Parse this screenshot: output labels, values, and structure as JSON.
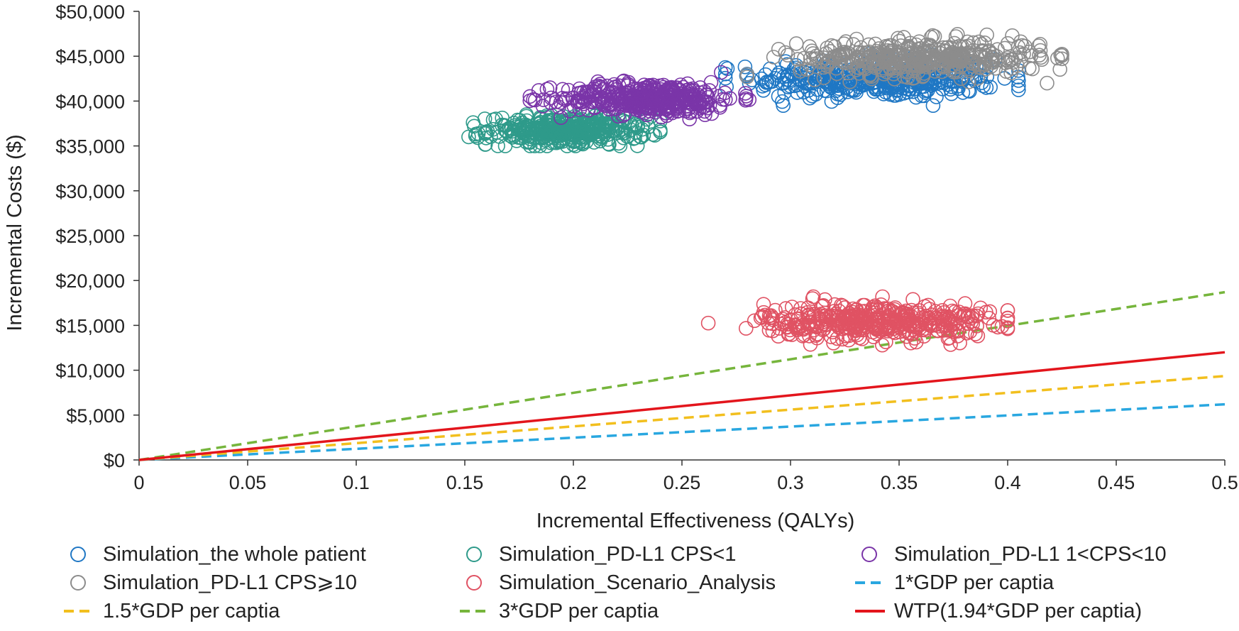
{
  "chart_data": {
    "type": "scatter",
    "title": "",
    "xlabel": "Incremental Effectiveness (QALYs)",
    "ylabel": "Incremental Costs ($)",
    "xlim": [
      0,
      0.5
    ],
    "ylim": [
      0,
      50000
    ],
    "x_ticks": [
      0,
      0.05,
      0.1,
      0.15,
      0.2,
      0.25,
      0.3,
      0.35,
      0.4,
      0.45,
      0.5
    ],
    "x_tick_labels": [
      "0",
      "0.05",
      "0.1",
      "0.15",
      "0.2",
      "0.25",
      "0.3",
      "0.35",
      "0.4",
      "0.45",
      "0.5"
    ],
    "y_ticks": [
      0,
      5000,
      10000,
      15000,
      20000,
      25000,
      30000,
      35000,
      40000,
      45000,
      50000
    ],
    "y_tick_labels": [
      "$0",
      "$5,000",
      "$10,000",
      "$15,000",
      "$20,000",
      "$25,000",
      "$30,000",
      "$35,000",
      "$40,000",
      "$45,000",
      "$50,000"
    ],
    "grid": false,
    "legend_position": "bottom",
    "scatter_series": [
      {
        "name": "Simulation_the whole patient",
        "color": "#1f77c4",
        "center": [
          0.34,
          42500
        ],
        "spread": [
          0.028,
          1100
        ],
        "count": 420,
        "range_x": [
          0.27,
          0.405
        ],
        "range_y": [
          39500,
          45500
        ]
      },
      {
        "name": "Simulation_PD-L1 CPS<1",
        "color": "#2e9a8a",
        "center": [
          0.197,
          36700
        ],
        "spread": [
          0.018,
          800
        ],
        "count": 380,
        "range_x": [
          0.145,
          0.24
        ],
        "range_y": [
          35000,
          38500
        ]
      },
      {
        "name": "Simulation_PD-L1 1<CPS<10",
        "color": "#7a35a8",
        "center": [
          0.235,
          40300
        ],
        "spread": [
          0.02,
          900
        ],
        "count": 400,
        "range_x": [
          0.18,
          0.285
        ],
        "range_y": [
          38000,
          43200
        ]
      },
      {
        "name": "Simulation_PD-L1 CPS≥10",
        "color": "#8c8c8c",
        "center": [
          0.36,
          44800
        ],
        "spread": [
          0.028,
          1000
        ],
        "count": 420,
        "range_x": [
          0.28,
          0.425
        ],
        "range_y": [
          42000,
          47500
        ]
      },
      {
        "name": "Simulation_Scenario_Analysis",
        "color": "#e05263",
        "center": [
          0.34,
          15500
        ],
        "spread": [
          0.026,
          1000
        ],
        "count": 420,
        "range_x": [
          0.245,
          0.4
        ],
        "range_y": [
          12800,
          18200
        ]
      }
    ],
    "line_series": [
      {
        "name": "1*GDP per captia",
        "color": "#29a7e0",
        "style": "dashed",
        "x": [
          0,
          0.5
        ],
        "y": [
          0,
          6200
        ]
      },
      {
        "name": "1.5*GDP per captia",
        "color": "#f2bf1e",
        "style": "dashed",
        "x": [
          0,
          0.5
        ],
        "y": [
          0,
          9350
        ]
      },
      {
        "name": "3*GDP per captia",
        "color": "#76b53c",
        "style": "dashed",
        "x": [
          0,
          0.5
        ],
        "y": [
          0,
          18700
        ]
      },
      {
        "name": "WTP(1.94*GDP per captia)",
        "color": "#e3151c",
        "style": "solid",
        "x": [
          0,
          0.5
        ],
        "y": [
          0,
          12000
        ]
      }
    ],
    "legend": [
      {
        "label": "Simulation_the whole patient",
        "kind": "marker",
        "color": "#1f77c4"
      },
      {
        "label": "Simulation_PD-L1 CPS<1",
        "kind": "marker",
        "color": "#2e9a8a"
      },
      {
        "label": "Simulation_PD-L1 1<CPS<10",
        "kind": "marker",
        "color": "#7a35a8"
      },
      {
        "label": "Simulation_PD-L1 CPS⩾10",
        "kind": "marker",
        "color": "#8c8c8c"
      },
      {
        "label": "Simulation_Scenario_Analysis",
        "kind": "marker",
        "color": "#e05263"
      },
      {
        "label": "1*GDP per captia",
        "kind": "dashed",
        "color": "#29a7e0"
      },
      {
        "label": "1.5*GDP per captia",
        "kind": "dashed",
        "color": "#f2bf1e"
      },
      {
        "label": "3*GDP per captia",
        "kind": "dashed",
        "color": "#76b53c"
      },
      {
        "label": "WTP(1.94*GDP per captia)",
        "kind": "solid",
        "color": "#e3151c"
      }
    ]
  }
}
